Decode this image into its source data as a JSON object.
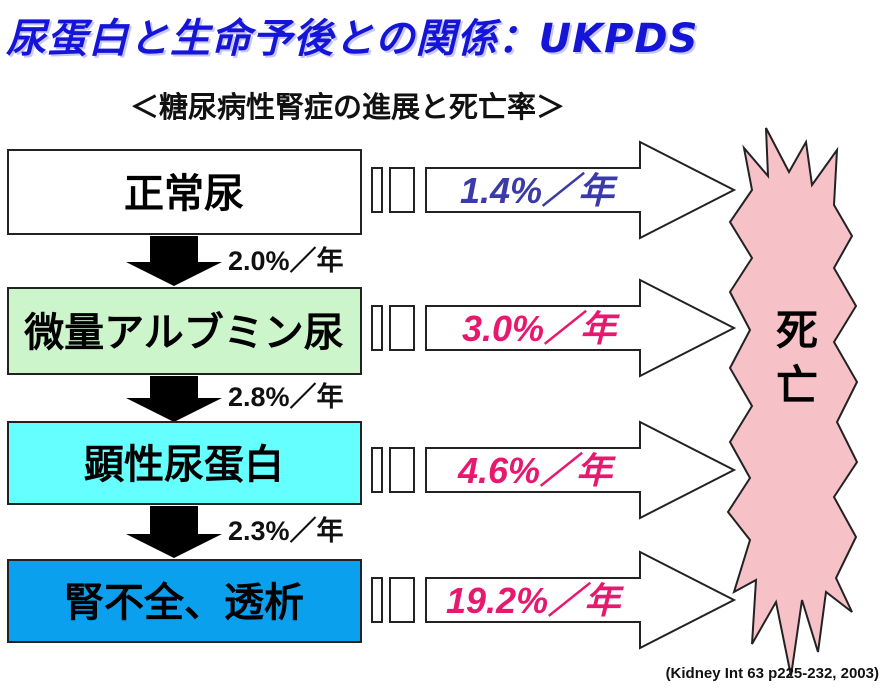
{
  "title": "尿蛋白と生命予後との関係：UKPDS",
  "subtitle": "＜糖尿病性腎症の進展と死亡率＞",
  "stages": [
    {
      "label": "正常尿",
      "fill": "#ffffff"
    },
    {
      "label": "微量アルブミン尿",
      "fill": "#ccf5cc"
    },
    {
      "label": "顕性尿蛋白",
      "fill": "#66ffff"
    },
    {
      "label": "腎不全、透析",
      "fill": "#0aa0ee"
    }
  ],
  "progression_rates": [
    {
      "label": "2.0%／年",
      "value": 2.0
    },
    {
      "label": "2.8%／年",
      "value": 2.8
    },
    {
      "label": "2.3%／年",
      "value": 2.3
    }
  ],
  "mortality_rates": [
    {
      "label": "1.4%／年",
      "value": 1.4,
      "color": "#3a3aa8"
    },
    {
      "label": "3.0%／年",
      "value": 3.0,
      "color": "#e8186e"
    },
    {
      "label": "4.6%／年",
      "value": 4.6,
      "color": "#e8186e"
    },
    {
      "label": "19.2%／年",
      "value": 19.2,
      "color": "#e8186e"
    }
  ],
  "outcome": {
    "label_line1": "死",
    "label_line2": "亡",
    "fill": "#f7c1c8"
  },
  "citation": "(Kidney Int 63 p225-232, 2003)"
}
